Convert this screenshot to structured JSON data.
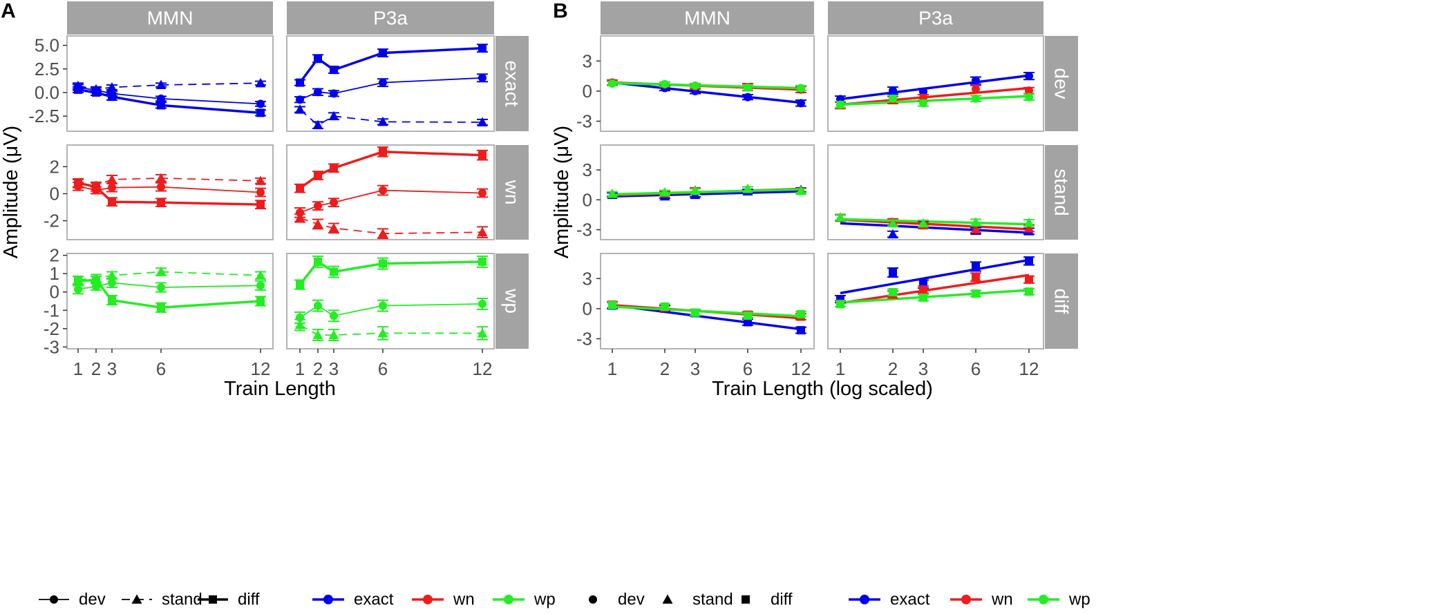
{
  "chart_data": [
    {
      "type": "line",
      "panel_label": "A",
      "xlabel": "Train Length",
      "ylabel": "Amplitude (μV)",
      "x": [
        1,
        2,
        3,
        6,
        12
      ],
      "x_tick_labels": [
        "1",
        "2",
        "3",
        "6",
        "12"
      ],
      "columns": [
        "MMN",
        "P3a"
      ],
      "rows": [
        "exact",
        "wn",
        "wp"
      ],
      "row_ylim": {
        "exact": [
          -4.1,
          6.0
        ],
        "wn": [
          -3.4,
          3.6
        ],
        "wp": [
          -3.1,
          2.1
        ]
      },
      "row_yticks": {
        "exact": {
          "values": [
            -2.5,
            0,
            2.5,
            5
          ],
          "labels": [
            "-2.5",
            "0.0",
            "2.5",
            "5.0"
          ]
        },
        "wn": {
          "values": [
            -2,
            0,
            2
          ],
          "labels": [
            "-2",
            "0",
            "2"
          ]
        },
        "wp": {
          "values": [
            -3,
            -2,
            -1,
            0,
            1,
            2
          ],
          "labels": [
            "-3",
            "-2",
            "-1",
            "0",
            "1",
            "2"
          ]
        }
      },
      "series": [
        {
          "column": "MMN",
          "row": "exact",
          "type": "dev",
          "values": [
            0.55,
            0.25,
            -0.1,
            -0.65,
            -1.2
          ],
          "err": [
            0.3,
            0.25,
            0.25,
            0.25,
            0.25
          ]
        },
        {
          "column": "MMN",
          "row": "exact",
          "type": "stand",
          "values": [
            0.7,
            0.35,
            0.55,
            0.8,
            1.0
          ],
          "err": [
            0.3,
            0.25,
            0.25,
            0.2,
            0.2
          ]
        },
        {
          "column": "MMN",
          "row": "exact",
          "type": "diff",
          "values": [
            0.3,
            0.0,
            -0.45,
            -1.35,
            -2.15
          ],
          "err": [
            0.3,
            0.3,
            0.35,
            0.3,
            0.3
          ]
        },
        {
          "column": "P3a",
          "row": "exact",
          "type": "dev",
          "values": [
            -0.75,
            0.05,
            -0.1,
            1.05,
            1.55
          ],
          "err": [
            0.3,
            0.35,
            0.3,
            0.4,
            0.4
          ]
        },
        {
          "column": "P3a",
          "row": "exact",
          "type": "stand",
          "values": [
            -1.8,
            -3.45,
            -2.5,
            -3.1,
            -3.15
          ],
          "err": [
            0.3,
            0.35,
            0.35,
            0.3,
            0.3
          ]
        },
        {
          "column": "P3a",
          "row": "exact",
          "type": "diff",
          "values": [
            1.05,
            3.6,
            2.4,
            4.2,
            4.7
          ],
          "err": [
            0.3,
            0.4,
            0.35,
            0.4,
            0.4
          ]
        },
        {
          "column": "MMN",
          "row": "wn",
          "type": "dev",
          "values": [
            0.55,
            0.25,
            0.45,
            0.5,
            0.1
          ],
          "err": [
            0.3,
            0.25,
            0.3,
            0.3,
            0.3
          ]
        },
        {
          "column": "MMN",
          "row": "wn",
          "type": "stand",
          "values": [
            0.75,
            0.6,
            1.05,
            1.15,
            0.95
          ],
          "err": [
            0.3,
            0.25,
            0.3,
            0.25,
            0.2
          ]
        },
        {
          "column": "MMN",
          "row": "wn",
          "type": "diff",
          "values": [
            0.8,
            0.5,
            -0.6,
            -0.65,
            -0.8
          ],
          "err": [
            0.3,
            0.3,
            0.3,
            0.3,
            0.3
          ]
        },
        {
          "column": "P3a",
          "row": "wn",
          "type": "dev",
          "values": [
            -1.4,
            -0.9,
            -0.65,
            0.25,
            0.05
          ],
          "err": [
            0.35,
            0.3,
            0.3,
            0.35,
            0.3
          ]
        },
        {
          "column": "P3a",
          "row": "wn",
          "type": "stand",
          "values": [
            -1.8,
            -2.25,
            -2.55,
            -2.95,
            -2.85
          ],
          "err": [
            0.3,
            0.35,
            0.35,
            0.35,
            0.4
          ]
        },
        {
          "column": "P3a",
          "row": "wn",
          "type": "diff",
          "values": [
            0.4,
            1.35,
            1.9,
            3.1,
            2.85
          ],
          "err": [
            0.3,
            0.3,
            0.3,
            0.35,
            0.35
          ]
        },
        {
          "column": "MMN",
          "row": "wp",
          "type": "dev",
          "values": [
            0.15,
            0.3,
            0.5,
            0.25,
            0.35
          ],
          "err": [
            0.25,
            0.2,
            0.25,
            0.25,
            0.25
          ]
        },
        {
          "column": "MMN",
          "row": "wp",
          "type": "stand",
          "values": [
            0.65,
            0.75,
            0.9,
            1.1,
            0.9
          ],
          "err": [
            0.2,
            0.2,
            0.2,
            0.2,
            0.2
          ]
        },
        {
          "column": "MMN",
          "row": "wp",
          "type": "diff",
          "values": [
            0.6,
            0.65,
            -0.45,
            -0.85,
            -0.5
          ],
          "err": [
            0.25,
            0.2,
            0.25,
            0.25,
            0.25
          ]
        },
        {
          "column": "P3a",
          "row": "wp",
          "type": "dev",
          "values": [
            -1.4,
            -0.75,
            -1.3,
            -0.75,
            -0.65
          ],
          "err": [
            0.3,
            0.3,
            0.3,
            0.3,
            0.3
          ]
        },
        {
          "column": "P3a",
          "row": "wp",
          "type": "stand",
          "values": [
            -1.8,
            -2.35,
            -2.35,
            -2.25,
            -2.25
          ],
          "err": [
            0.3,
            0.3,
            0.3,
            0.35,
            0.35
          ]
        },
        {
          "column": "P3a",
          "row": "wp",
          "type": "diff",
          "values": [
            0.4,
            1.65,
            1.1,
            1.55,
            1.65
          ],
          "err": [
            0.25,
            0.3,
            0.3,
            0.3,
            0.3
          ]
        }
      ]
    },
    {
      "type": "scatter",
      "panel_label": "B",
      "xlabel": "Train Length (log scaled)",
      "ylabel": "Amplitude (μV)",
      "x": [
        1,
        2,
        3,
        6,
        12
      ],
      "x_tick_labels": [
        "1",
        "2",
        "3",
        "6",
        "12"
      ],
      "x_scale": "log",
      "columns": [
        "MMN",
        "P3a"
      ],
      "rows": [
        "dev",
        "stand",
        "diff"
      ],
      "ylim": [
        -4.0,
        5.5
      ],
      "yticks": [
        -3,
        0,
        3
      ],
      "ytick_labels": [
        "-3",
        "0",
        "3"
      ],
      "points": [
        {
          "column": "MMN",
          "row": "dev",
          "condition": "exact",
          "values": [
            0.85,
            0.3,
            0.0,
            -0.6,
            -1.2
          ],
          "err": [
            0.25,
            0.25,
            0.25,
            0.25,
            0.3
          ]
        },
        {
          "column": "MMN",
          "row": "dev",
          "condition": "wn",
          "values": [
            0.85,
            0.65,
            0.45,
            0.4,
            0.15
          ],
          "err": [
            0.25,
            0.25,
            0.25,
            0.35,
            0.3
          ]
        },
        {
          "column": "MMN",
          "row": "dev",
          "condition": "wp",
          "values": [
            0.75,
            0.7,
            0.55,
            0.35,
            0.3
          ],
          "err": [
            0.2,
            0.2,
            0.2,
            0.25,
            0.25
          ]
        },
        {
          "column": "P3a",
          "row": "dev",
          "condition": "exact",
          "values": [
            -0.8,
            0.05,
            -0.05,
            1.05,
            1.5
          ],
          "err": [
            0.3,
            0.35,
            0.3,
            0.35,
            0.35
          ]
        },
        {
          "column": "P3a",
          "row": "dev",
          "condition": "wn",
          "values": [
            -1.4,
            -0.9,
            -0.65,
            0.2,
            0.05
          ],
          "err": [
            0.35,
            0.35,
            0.3,
            0.35,
            0.3
          ]
        },
        {
          "column": "P3a",
          "row": "dev",
          "condition": "wp",
          "values": [
            -1.35,
            -0.75,
            -1.2,
            -0.75,
            -0.6
          ],
          "err": [
            0.3,
            0.3,
            0.3,
            0.3,
            0.3
          ]
        },
        {
          "column": "MMN",
          "row": "stand",
          "condition": "exact",
          "values": [
            0.5,
            0.35,
            0.5,
            0.85,
            1.0
          ],
          "err": [
            0.2,
            0.2,
            0.2,
            0.2,
            0.2
          ]
        },
        {
          "column": "MMN",
          "row": "stand",
          "condition": "wn",
          "values": [
            0.6,
            0.65,
            0.95,
            1.1,
            0.95
          ],
          "err": [
            0.2,
            0.2,
            0.25,
            0.2,
            0.2
          ]
        },
        {
          "column": "MMN",
          "row": "stand",
          "condition": "wp",
          "values": [
            0.6,
            0.75,
            0.9,
            1.1,
            0.9
          ],
          "err": [
            0.2,
            0.2,
            0.2,
            0.2,
            0.2
          ]
        },
        {
          "column": "P3a",
          "row": "stand",
          "condition": "exact",
          "values": [
            -1.8,
            -3.45,
            -2.5,
            -3.1,
            -3.15
          ],
          "err": [
            0.3,
            0.3,
            0.3,
            0.3,
            0.3
          ]
        },
        {
          "column": "P3a",
          "row": "stand",
          "condition": "wn",
          "values": [
            -1.8,
            -2.25,
            -2.55,
            -2.95,
            -2.85
          ],
          "err": [
            0.3,
            0.35,
            0.3,
            0.35,
            0.35
          ]
        },
        {
          "column": "P3a",
          "row": "stand",
          "condition": "wp",
          "values": [
            -1.75,
            -2.35,
            -2.35,
            -2.25,
            -2.3
          ],
          "err": [
            0.3,
            0.3,
            0.3,
            0.3,
            0.3
          ]
        },
        {
          "column": "MMN",
          "row": "diff",
          "condition": "exact",
          "values": [
            0.3,
            0.0,
            -0.45,
            -1.35,
            -2.15
          ],
          "err": [
            0.3,
            0.3,
            0.3,
            0.3,
            0.3
          ]
        },
        {
          "column": "MMN",
          "row": "diff",
          "condition": "wn",
          "values": [
            0.4,
            0.1,
            -0.4,
            -0.6,
            -0.8
          ],
          "err": [
            0.3,
            0.3,
            0.3,
            0.3,
            0.3
          ]
        },
        {
          "column": "MMN",
          "row": "diff",
          "condition": "wp",
          "values": [
            0.35,
            0.2,
            -0.4,
            -0.7,
            -0.55
          ],
          "err": [
            0.25,
            0.25,
            0.25,
            0.25,
            0.25
          ]
        },
        {
          "column": "P3a",
          "row": "diff",
          "condition": "exact",
          "values": [
            0.95,
            3.6,
            2.45,
            4.2,
            4.75
          ],
          "err": [
            0.35,
            0.45,
            0.4,
            0.45,
            0.4
          ]
        },
        {
          "column": "P3a",
          "row": "diff",
          "condition": "wn",
          "values": [
            0.5,
            1.4,
            1.9,
            3.15,
            2.9
          ],
          "err": [
            0.3,
            0.35,
            0.35,
            0.4,
            0.35
          ]
        },
        {
          "column": "P3a",
          "row": "diff",
          "condition": "wp",
          "values": [
            0.45,
            1.65,
            1.1,
            1.5,
            1.7
          ],
          "err": [
            0.25,
            0.3,
            0.3,
            0.3,
            0.3
          ]
        }
      ],
      "fit_lines": [
        {
          "column": "MMN",
          "row": "dev",
          "condition": "exact",
          "y_at_1": 0.85,
          "y_at_12": -1.15
        },
        {
          "column": "MMN",
          "row": "dev",
          "condition": "wn",
          "y_at_1": 0.85,
          "y_at_12": 0.15
        },
        {
          "column": "MMN",
          "row": "dev",
          "condition": "wp",
          "y_at_1": 0.8,
          "y_at_12": 0.3
        },
        {
          "column": "P3a",
          "row": "dev",
          "condition": "exact",
          "y_at_1": -0.8,
          "y_at_12": 1.55
        },
        {
          "column": "P3a",
          "row": "dev",
          "condition": "wn",
          "y_at_1": -1.35,
          "y_at_12": 0.3
        },
        {
          "column": "P3a",
          "row": "dev",
          "condition": "wp",
          "y_at_1": -1.35,
          "y_at_12": -0.5
        },
        {
          "column": "MMN",
          "row": "stand",
          "condition": "exact",
          "y_at_1": 0.35,
          "y_at_12": 0.85
        },
        {
          "column": "MMN",
          "row": "stand",
          "condition": "wn",
          "y_at_1": 0.45,
          "y_at_12": 1.1
        },
        {
          "column": "MMN",
          "row": "stand",
          "condition": "wp",
          "y_at_1": 0.55,
          "y_at_12": 1.05
        },
        {
          "column": "P3a",
          "row": "stand",
          "condition": "exact",
          "y_at_1": -2.35,
          "y_at_12": -3.3
        },
        {
          "column": "P3a",
          "row": "stand",
          "condition": "wn",
          "y_at_1": -2.0,
          "y_at_12": -2.95
        },
        {
          "column": "P3a",
          "row": "stand",
          "condition": "wp",
          "y_at_1": -1.95,
          "y_at_12": -2.45
        },
        {
          "column": "MMN",
          "row": "diff",
          "condition": "exact",
          "y_at_1": 0.35,
          "y_at_12": -2.05
        },
        {
          "column": "MMN",
          "row": "diff",
          "condition": "wn",
          "y_at_1": 0.35,
          "y_at_12": -0.95
        },
        {
          "column": "MMN",
          "row": "diff",
          "condition": "wp",
          "y_at_1": 0.2,
          "y_at_12": -0.75
        },
        {
          "column": "P3a",
          "row": "diff",
          "condition": "exact",
          "y_at_1": 1.55,
          "y_at_12": 4.85
        },
        {
          "column": "P3a",
          "row": "diff",
          "condition": "wn",
          "y_at_1": 0.55,
          "y_at_12": 3.35
        },
        {
          "column": "P3a",
          "row": "diff",
          "condition": "wp",
          "y_at_1": 0.6,
          "y_at_12": 1.85
        }
      ]
    }
  ],
  "colors": {
    "exact": "#0000ee",
    "wn": "#ee1c1c",
    "wp": "#22ee22",
    "strip": "#a3a3a3",
    "frame": "#b3b3b3",
    "text": "#4d4d4d"
  },
  "legends": {
    "type": {
      "dev": "dev",
      "stand": "stand",
      "diff": "diff"
    },
    "condition": {
      "exact": "exact",
      "wn": "wn",
      "wp": "wp"
    }
  }
}
